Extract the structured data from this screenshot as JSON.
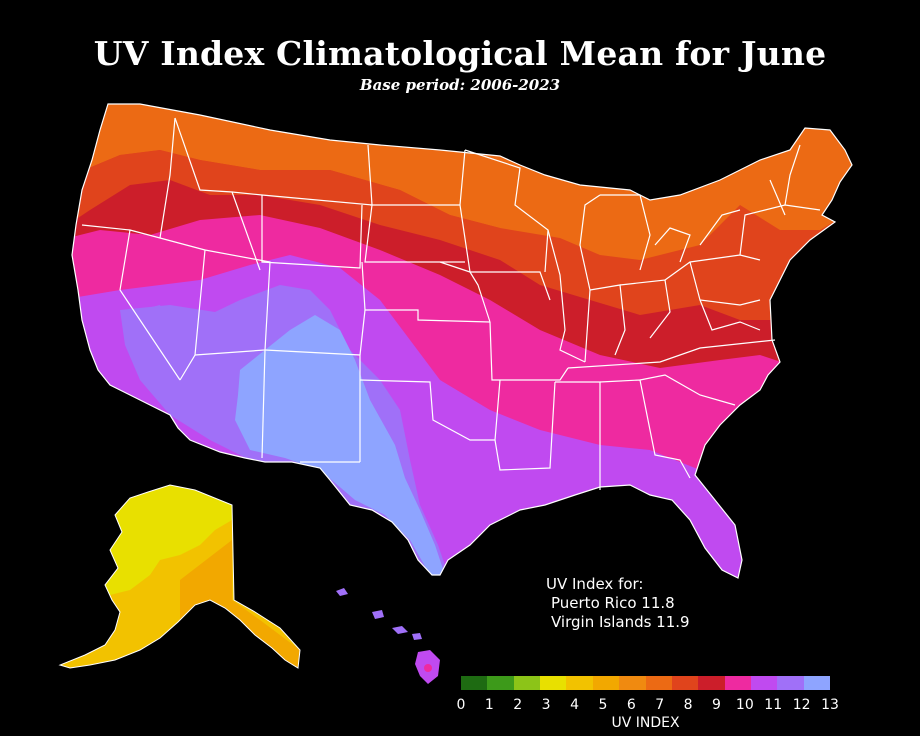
{
  "map": {
    "title": "UV Index Climatological Mean for June",
    "subtitle": "Base period: 2006-2023",
    "note": {
      "heading": "UV Index for:",
      "lines": [
        "Puerto Rico 11.8",
        "Virgin Islands 11.9"
      ]
    },
    "legend": {
      "label": "UV INDEX",
      "ticks": [
        "0",
        "1",
        "2",
        "3",
        "4",
        "5",
        "6",
        "7",
        "8",
        "9",
        "10",
        "11",
        "12",
        "13"
      ],
      "colors": [
        "#1e6b12",
        "#3d9a1a",
        "#8cc418",
        "#e8e000",
        "#f2c200",
        "#f2a800",
        "#f08a10",
        "#ec6a14",
        "#e0441c",
        "#cc1e2a",
        "#ee2aa0",
        "#c04af0",
        "#a070f8",
        "#8ea4ff"
      ]
    },
    "background": "#000000",
    "border_color": "#ffffff"
  }
}
